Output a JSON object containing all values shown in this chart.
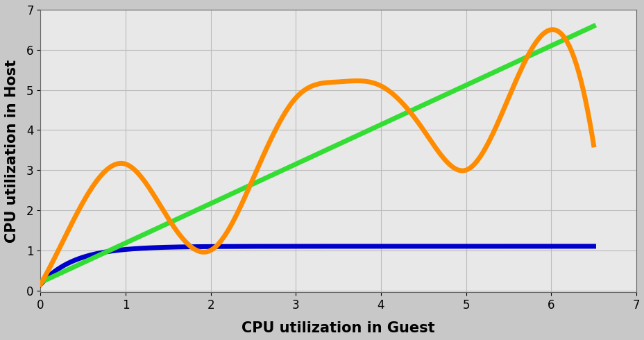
{
  "xlabel": "CPU utilization in Guest",
  "ylabel": "CPU utilization in Host",
  "xlim": [
    0,
    7
  ],
  "ylim": [
    -0.05,
    7
  ],
  "xticks": [
    0,
    1,
    2,
    3,
    4,
    5,
    6,
    7
  ],
  "yticks": [
    0,
    1,
    2,
    3,
    4,
    5,
    6,
    7
  ],
  "xlabel_fontsize": 15,
  "ylabel_fontsize": 15,
  "xlabel_fontweight": "bold",
  "ylabel_fontweight": "bold",
  "tick_fontsize": 12,
  "blue_color": "#0000CC",
  "green_color": "#33DD33",
  "orange_color": "#FF8C00",
  "linewidth": 5,
  "plot_bg_color": "#E8E8E8",
  "grid_color": "#BBBBBB",
  "figure_facecolor": "#C8C8C8",
  "orange_x": [
    0,
    0.5,
    1.0,
    1.5,
    2.0,
    2.5,
    3.0,
    3.5,
    4.0,
    4.5,
    5.0,
    5.5,
    6.0
  ],
  "orange_y": [
    0.15,
    2.2,
    3.15,
    1.8,
    1.0,
    2.8,
    4.8,
    5.2,
    5.1,
    4.0,
    3.0,
    4.8,
    6.5
  ],
  "green_x": [
    0,
    6
  ],
  "green_y": [
    0.2,
    6.1
  ],
  "blue_saturation": 1.1,
  "blue_start": 0.15,
  "blue_rate": 2.5
}
